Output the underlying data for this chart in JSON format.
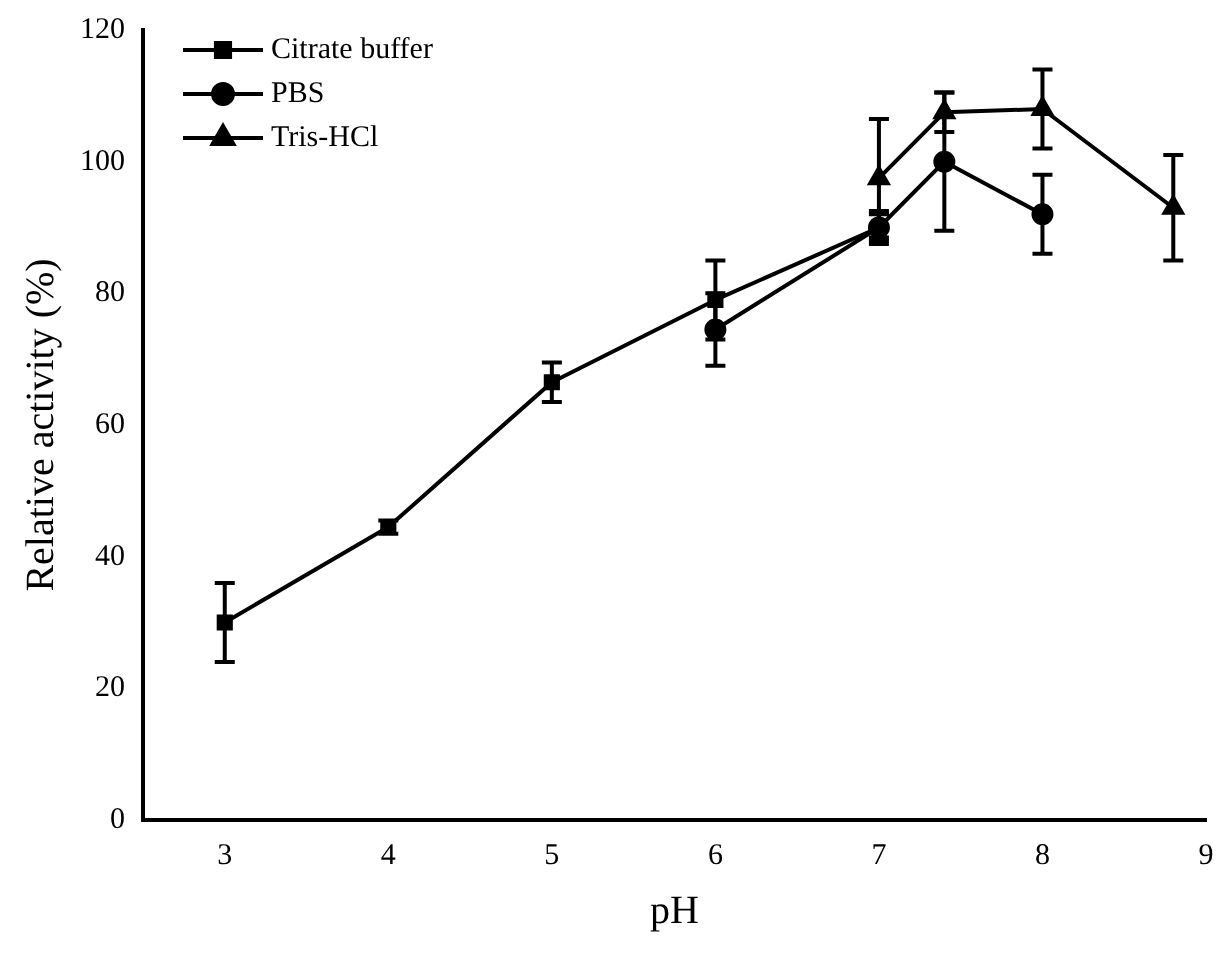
{
  "chart_data": {
    "type": "line",
    "xlabel": "pH",
    "ylabel": "Relative activity (%)",
    "xlim": [
      2.5,
      9
    ],
    "xticks": [
      3,
      4,
      5,
      6,
      7,
      8,
      9
    ],
    "ylim": [
      0,
      120
    ],
    "yticks": [
      0,
      20,
      40,
      60,
      80,
      100,
      120
    ],
    "grid": false,
    "legend": "top left",
    "line_style": "solid",
    "series": [
      {
        "name": "Citrate buffer",
        "color": "#000000",
        "marker": "square",
        "x": [
          3,
          4,
          5,
          6,
          7
        ],
        "values": [
          30,
          44.5,
          66.5,
          79,
          90
        ],
        "errors": [
          6,
          1,
          3,
          6,
          2
        ]
      },
      {
        "name": "PBS",
        "color": "#000000",
        "marker": "circle",
        "x": [
          6,
          7,
          7.4,
          8
        ],
        "values": [
          74.5,
          90,
          100,
          92
        ],
        "errors": [
          5.5,
          2.5,
          10.5,
          6
        ]
      },
      {
        "name": "Tris-HCl",
        "color": "#000000",
        "marker": "triangle",
        "x": [
          7,
          7.4,
          8,
          8.8
        ],
        "values": [
          97.5,
          107.5,
          108,
          93
        ],
        "errors": [
          9,
          3,
          6,
          8
        ]
      }
    ]
  }
}
